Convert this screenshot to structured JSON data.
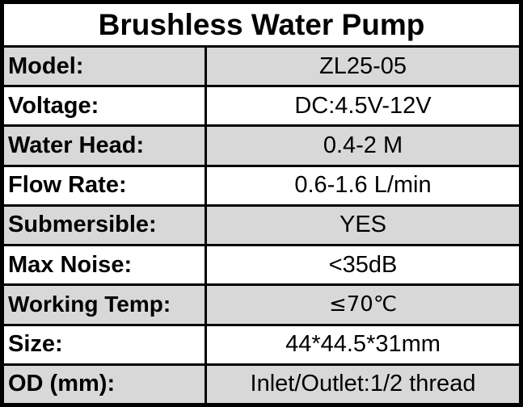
{
  "title": "Brushless Water Pump",
  "rows": [
    {
      "label": "Model:",
      "value": "ZL25-05"
    },
    {
      "label": "Voltage:",
      "value": "DC:4.5V-12V"
    },
    {
      "label": "Water Head:",
      "value": "0.4-2 M"
    },
    {
      "label": "Flow Rate:",
      "value": "0.6-1.6 L/min"
    },
    {
      "label": "Submersible:",
      "value": "YES"
    },
    {
      "label": "Max Noise:",
      "value": "<35dB"
    },
    {
      "label": "Working Temp:",
      "value": "≤70℃"
    },
    {
      "label": "Size:",
      "value": "44*44.5*31mm"
    },
    {
      "label": "OD (mm):",
      "value": "Inlet/Outlet:1/2 thread"
    }
  ],
  "colors": {
    "shaded_row": "#d8d8d8",
    "plain_row": "#ffffff",
    "border": "#000000"
  }
}
